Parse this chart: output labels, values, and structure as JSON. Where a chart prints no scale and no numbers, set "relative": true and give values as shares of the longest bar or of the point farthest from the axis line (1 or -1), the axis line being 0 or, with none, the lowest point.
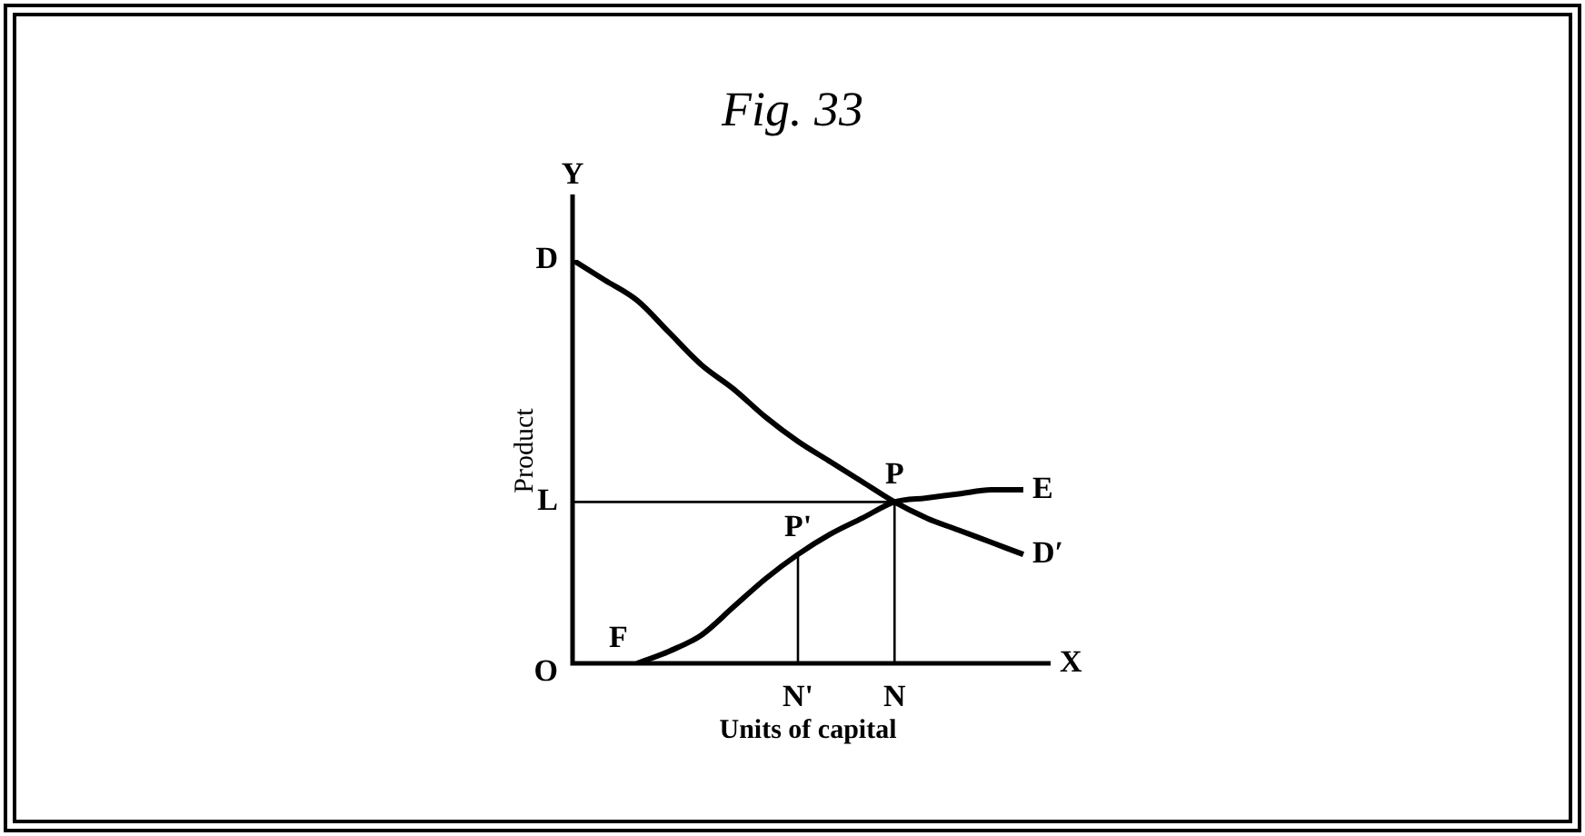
{
  "chart_data": {
    "type": "line",
    "title": "Fig. 33",
    "xlabel": "Units of capital",
    "ylabel": "Product",
    "relative": true,
    "categories": [
      null,
      null,
      null,
      null,
      null,
      null,
      null,
      "N'",
      null,
      null,
      "N",
      null,
      null,
      null,
      null
    ],
    "series": [
      {
        "color": "#000000",
        "values": [
          1,
          0.95,
          0.9,
          0.82,
          0.74,
          0.68,
          0.61,
          0.55,
          0.5,
          0.45,
          0.4,
          0.36,
          0.33,
          0.3,
          0.27
        ]
      },
      {
        "color": "#000000",
        "values": [
          null,
          null,
          0,
          0.03,
          0.07,
          0.14,
          0.21,
          0.27,
          0.32,
          0.36,
          0.4,
          0.41,
          0.42,
          0.43,
          0.43
        ]
      }
    ],
    "ref_lines": [
      {
        "axis": "y",
        "value": 0.4,
        "label": "L",
        "color": "#000000"
      },
      {
        "axis": "x",
        "value": "N'",
        "color": "#000000"
      },
      {
        "axis": "x",
        "value": "N",
        "color": "#000000"
      }
    ],
    "annotations": [
      "Y",
      "D",
      "O",
      "F",
      {
        "text": "P'",
        "x": "N'",
        "y": 0.27
      },
      {
        "text": "P",
        "x": "N",
        "y": 0.4
      },
      "E",
      "D′",
      "X"
    ],
    "grid": false,
    "legend": false,
    "marker": "none",
    "line_style": "solid"
  }
}
